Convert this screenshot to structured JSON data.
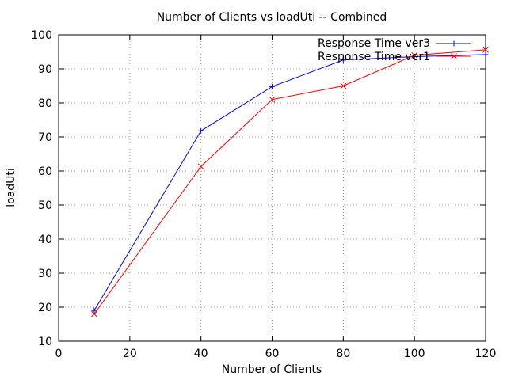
{
  "chart_data": {
    "type": "line",
    "title": "Number of Clients vs loadUti -- Combined",
    "xlabel": "Number of Clients",
    "ylabel": "loadUti",
    "xlim": [
      0,
      120
    ],
    "ylim": [
      10,
      100
    ],
    "xticks": [
      0,
      20,
      40,
      60,
      80,
      100,
      120
    ],
    "yticks": [
      10,
      20,
      30,
      40,
      50,
      60,
      70,
      80,
      90,
      100
    ],
    "grid": true,
    "legend_position": "top-right",
    "series": [
      {
        "name": "Response Time ver3",
        "color": "#0000ff",
        "marker": "plus",
        "x": [
          10,
          40,
          60,
          80,
          100,
          120
        ],
        "y": [
          19,
          71.8,
          84.8,
          92.6,
          93.6,
          94.2
        ]
      },
      {
        "name": "Response Time ver1",
        "color": "#ff0000",
        "marker": "cross",
        "x": [
          10,
          40,
          60,
          80,
          100,
          120
        ],
        "y": [
          18,
          61.3,
          81,
          85,
          94,
          95.6
        ]
      }
    ]
  }
}
